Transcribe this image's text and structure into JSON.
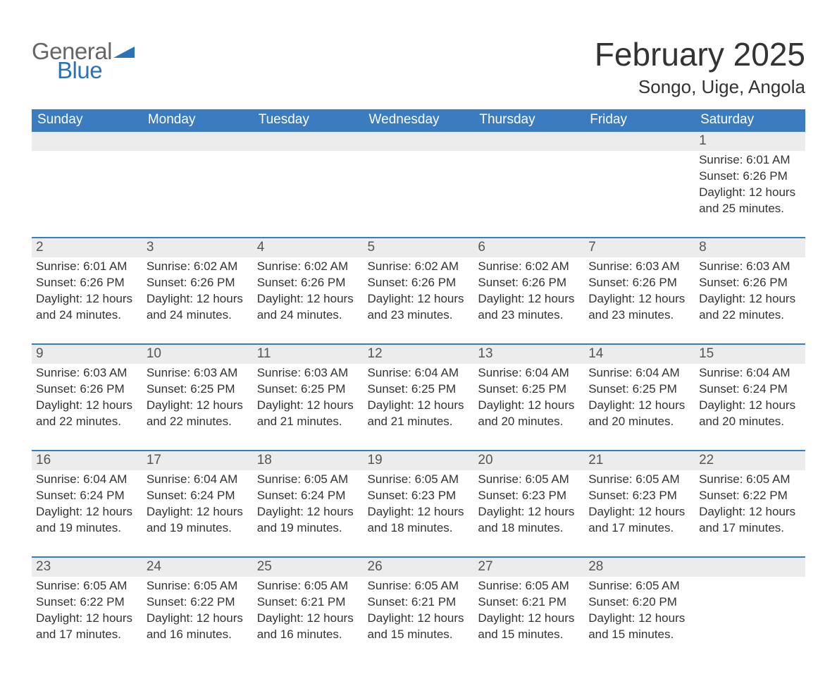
{
  "logo": {
    "general_text": "General",
    "blue_text": "Blue",
    "icon_color": "#2c72b8"
  },
  "header": {
    "month_year": "February 2025",
    "location": "Songo, Uige, Angola"
  },
  "colors": {
    "header_bg": "#3a7cbf",
    "header_text": "#ffffff",
    "daynum_bg": "#ececec",
    "text": "#333333",
    "rule": "#3a7cbf",
    "page_bg": "#ffffff"
  },
  "weekdays": [
    "Sunday",
    "Monday",
    "Tuesday",
    "Wednesday",
    "Thursday",
    "Friday",
    "Saturday"
  ],
  "weeks": [
    {
      "cells": [
        {
          "day": "",
          "lines": [
            "",
            "",
            "",
            ""
          ]
        },
        {
          "day": "",
          "lines": [
            "",
            "",
            "",
            ""
          ]
        },
        {
          "day": "",
          "lines": [
            "",
            "",
            "",
            ""
          ]
        },
        {
          "day": "",
          "lines": [
            "",
            "",
            "",
            ""
          ]
        },
        {
          "day": "",
          "lines": [
            "",
            "",
            "",
            ""
          ]
        },
        {
          "day": "",
          "lines": [
            "",
            "",
            "",
            ""
          ]
        },
        {
          "day": "1",
          "lines": [
            "Sunrise: 6:01 AM",
            "Sunset: 6:26 PM",
            "Daylight: 12 hours",
            "and 25 minutes."
          ]
        }
      ]
    },
    {
      "cells": [
        {
          "day": "2",
          "lines": [
            "Sunrise: 6:01 AM",
            "Sunset: 6:26 PM",
            "Daylight: 12 hours",
            "and 24 minutes."
          ]
        },
        {
          "day": "3",
          "lines": [
            "Sunrise: 6:02 AM",
            "Sunset: 6:26 PM",
            "Daylight: 12 hours",
            "and 24 minutes."
          ]
        },
        {
          "day": "4",
          "lines": [
            "Sunrise: 6:02 AM",
            "Sunset: 6:26 PM",
            "Daylight: 12 hours",
            "and 24 minutes."
          ]
        },
        {
          "day": "5",
          "lines": [
            "Sunrise: 6:02 AM",
            "Sunset: 6:26 PM",
            "Daylight: 12 hours",
            "and 23 minutes."
          ]
        },
        {
          "day": "6",
          "lines": [
            "Sunrise: 6:02 AM",
            "Sunset: 6:26 PM",
            "Daylight: 12 hours",
            "and 23 minutes."
          ]
        },
        {
          "day": "7",
          "lines": [
            "Sunrise: 6:03 AM",
            "Sunset: 6:26 PM",
            "Daylight: 12 hours",
            "and 23 minutes."
          ]
        },
        {
          "day": "8",
          "lines": [
            "Sunrise: 6:03 AM",
            "Sunset: 6:26 PM",
            "Daylight: 12 hours",
            "and 22 minutes."
          ]
        }
      ]
    },
    {
      "cells": [
        {
          "day": "9",
          "lines": [
            "Sunrise: 6:03 AM",
            "Sunset: 6:26 PM",
            "Daylight: 12 hours",
            "and 22 minutes."
          ]
        },
        {
          "day": "10",
          "lines": [
            "Sunrise: 6:03 AM",
            "Sunset: 6:25 PM",
            "Daylight: 12 hours",
            "and 22 minutes."
          ]
        },
        {
          "day": "11",
          "lines": [
            "Sunrise: 6:03 AM",
            "Sunset: 6:25 PM",
            "Daylight: 12 hours",
            "and 21 minutes."
          ]
        },
        {
          "day": "12",
          "lines": [
            "Sunrise: 6:04 AM",
            "Sunset: 6:25 PM",
            "Daylight: 12 hours",
            "and 21 minutes."
          ]
        },
        {
          "day": "13",
          "lines": [
            "Sunrise: 6:04 AM",
            "Sunset: 6:25 PM",
            "Daylight: 12 hours",
            "and 20 minutes."
          ]
        },
        {
          "day": "14",
          "lines": [
            "Sunrise: 6:04 AM",
            "Sunset: 6:25 PM",
            "Daylight: 12 hours",
            "and 20 minutes."
          ]
        },
        {
          "day": "15",
          "lines": [
            "Sunrise: 6:04 AM",
            "Sunset: 6:24 PM",
            "Daylight: 12 hours",
            "and 20 minutes."
          ]
        }
      ]
    },
    {
      "cells": [
        {
          "day": "16",
          "lines": [
            "Sunrise: 6:04 AM",
            "Sunset: 6:24 PM",
            "Daylight: 12 hours",
            "and 19 minutes."
          ]
        },
        {
          "day": "17",
          "lines": [
            "Sunrise: 6:04 AM",
            "Sunset: 6:24 PM",
            "Daylight: 12 hours",
            "and 19 minutes."
          ]
        },
        {
          "day": "18",
          "lines": [
            "Sunrise: 6:05 AM",
            "Sunset: 6:24 PM",
            "Daylight: 12 hours",
            "and 19 minutes."
          ]
        },
        {
          "day": "19",
          "lines": [
            "Sunrise: 6:05 AM",
            "Sunset: 6:23 PM",
            "Daylight: 12 hours",
            "and 18 minutes."
          ]
        },
        {
          "day": "20",
          "lines": [
            "Sunrise: 6:05 AM",
            "Sunset: 6:23 PM",
            "Daylight: 12 hours",
            "and 18 minutes."
          ]
        },
        {
          "day": "21",
          "lines": [
            "Sunrise: 6:05 AM",
            "Sunset: 6:23 PM",
            "Daylight: 12 hours",
            "and 17 minutes."
          ]
        },
        {
          "day": "22",
          "lines": [
            "Sunrise: 6:05 AM",
            "Sunset: 6:22 PM",
            "Daylight: 12 hours",
            "and 17 minutes."
          ]
        }
      ]
    },
    {
      "cells": [
        {
          "day": "23",
          "lines": [
            "Sunrise: 6:05 AM",
            "Sunset: 6:22 PM",
            "Daylight: 12 hours",
            "and 17 minutes."
          ]
        },
        {
          "day": "24",
          "lines": [
            "Sunrise: 6:05 AM",
            "Sunset: 6:22 PM",
            "Daylight: 12 hours",
            "and 16 minutes."
          ]
        },
        {
          "day": "25",
          "lines": [
            "Sunrise: 6:05 AM",
            "Sunset: 6:21 PM",
            "Daylight: 12 hours",
            "and 16 minutes."
          ]
        },
        {
          "day": "26",
          "lines": [
            "Sunrise: 6:05 AM",
            "Sunset: 6:21 PM",
            "Daylight: 12 hours",
            "and 15 minutes."
          ]
        },
        {
          "day": "27",
          "lines": [
            "Sunrise: 6:05 AM",
            "Sunset: 6:21 PM",
            "Daylight: 12 hours",
            "and 15 minutes."
          ]
        },
        {
          "day": "28",
          "lines": [
            "Sunrise: 6:05 AM",
            "Sunset: 6:20 PM",
            "Daylight: 12 hours",
            "and 15 minutes."
          ]
        },
        {
          "day": "",
          "lines": [
            "",
            "",
            "",
            ""
          ]
        }
      ]
    }
  ]
}
